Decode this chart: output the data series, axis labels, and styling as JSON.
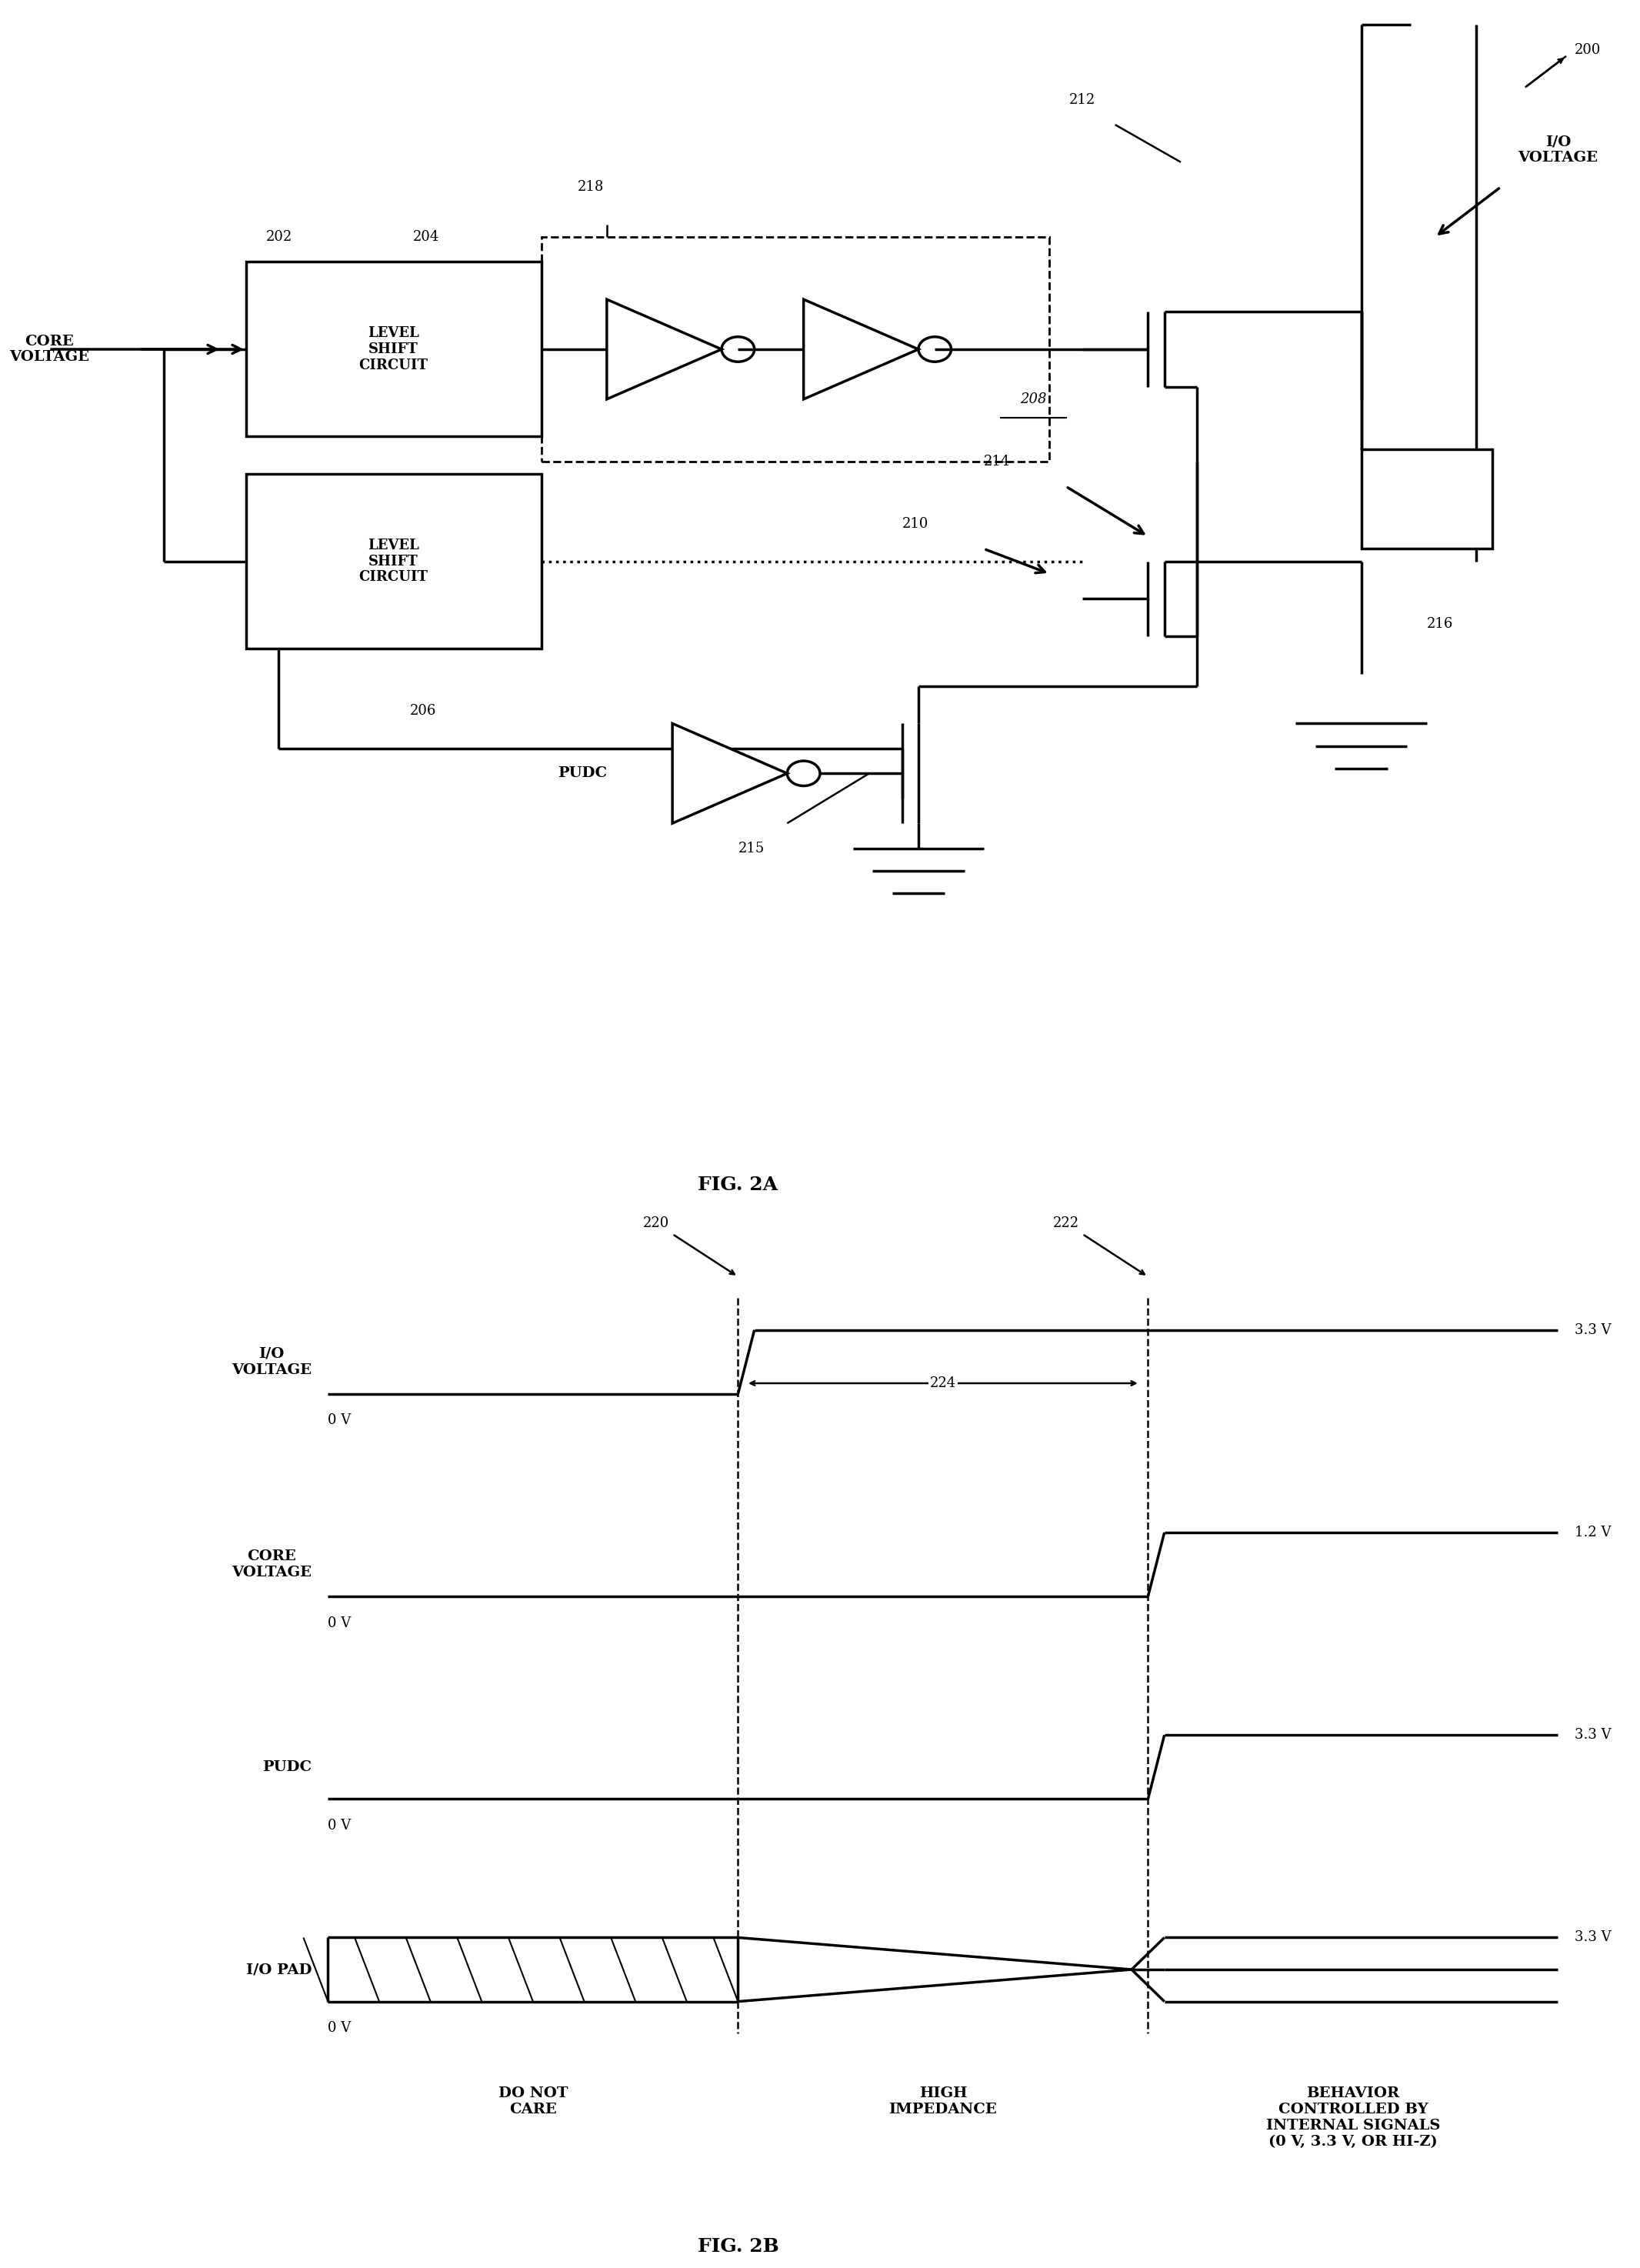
{
  "bg_color": "#ffffff",
  "line_color": "#000000",
  "fig_width": 21.32,
  "fig_height": 29.48,
  "fig2a_label": "FIG. 2A",
  "fig2b_label": "FIG. 2B",
  "ref_200": "200",
  "ref_202": "202",
  "ref_204": "204",
  "ref_206": "206",
  "ref_208": "208",
  "ref_210": "210",
  "ref_212": "212",
  "ref_214": "214",
  "ref_215": "215",
  "ref_216": "216",
  "ref_218": "218",
  "ref_220": "220",
  "ref_222": "222",
  "ref_224": "224",
  "label_core_voltage": "CORE\nVOLTAGE",
  "label_io_voltage": "I/O\nVOLTAGE",
  "label_level_shift_1": "LEVEL\nSHIFT\nCIRCUIT",
  "label_level_shift_2": "LEVEL\nSHIFT\nCIRCUIT",
  "label_pudc": "PUDC",
  "label_33v": "3.3 V",
  "label_12v": "1.2 V",
  "label_0v": "0 V",
  "label_io_voltage_b": "I/O\nVOLTAGE",
  "label_core_voltage_b": "CORE\nVOLTAGE",
  "label_pudc_b": "PUDC",
  "label_io_pad": "I/O PAD",
  "label_do_not_care": "DO NOT\nCARE",
  "label_high_impedance": "HIGH\nIMPEDANCE",
  "label_behavior": "BEHAVIOR\nCONTROLLED BY\nINTERNAL SIGNALS\n(0 V, 3.3 V, OR HI-Z)"
}
